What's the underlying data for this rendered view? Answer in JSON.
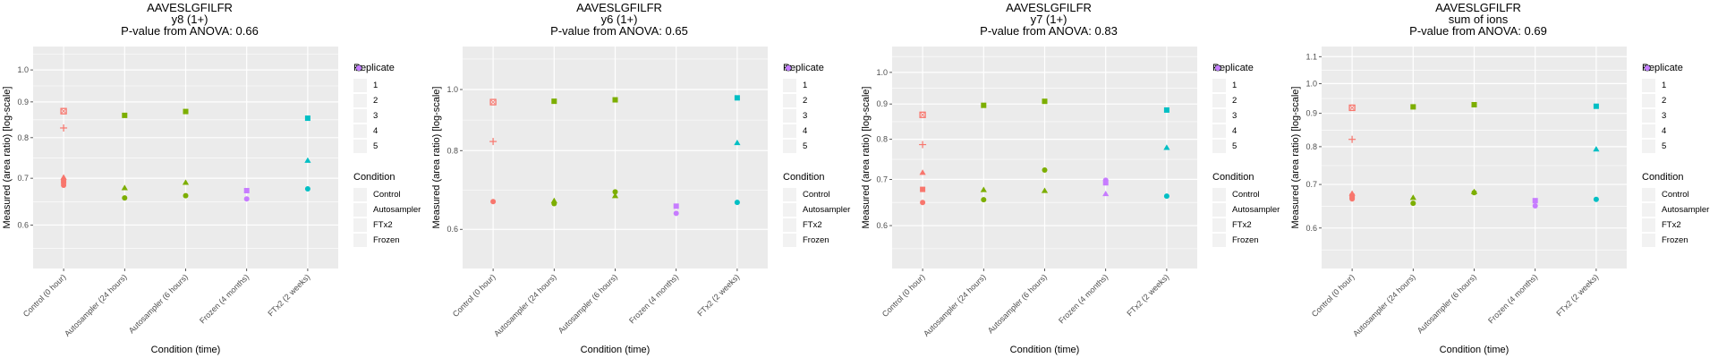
{
  "chart_data": [
    {
      "type": "scatter",
      "title": "AAVESLGFILFR",
      "subtitle": "y8 (1+)",
      "pvalue_label": "P-value from ANOVA: 0.66",
      "xlabel": "Condition (time)",
      "ylabel": "Measured (area ratio) [log-scale]",
      "yscale": "log",
      "ylim": [
        0.52,
        1.08
      ],
      "yticks": [
        0.6,
        0.7,
        0.8,
        0.9,
        1.0
      ],
      "ytick_labels": [
        "0.6",
        "0.7",
        "0.8",
        "0.9",
        "1.0"
      ],
      "categories": [
        "Control (0 hour)",
        "Autosampler (24 hours)",
        "Autosampler (6 hours)",
        "Frozen (4 months)",
        "FTx2 (2 weeks)"
      ],
      "points": [
        {
          "x": "Control (0 hour)",
          "y": 0.684,
          "replicate": 1,
          "condition": "Control"
        },
        {
          "x": "Control (0 hour)",
          "y": 0.702,
          "replicate": 2,
          "condition": "Control"
        },
        {
          "x": "Control (0 hour)",
          "y": 0.693,
          "replicate": 3,
          "condition": "Control"
        },
        {
          "x": "Control (0 hour)",
          "y": 0.826,
          "replicate": 4,
          "condition": "Control"
        },
        {
          "x": "Control (0 hour)",
          "y": 0.873,
          "replicate": 5,
          "condition": "Control"
        },
        {
          "x": "Autosampler (24 hours)",
          "y": 0.656,
          "replicate": 1,
          "condition": "Autosampler"
        },
        {
          "x": "Autosampler (24 hours)",
          "y": 0.678,
          "replicate": 2,
          "condition": "Autosampler"
        },
        {
          "x": "Autosampler (24 hours)",
          "y": 0.861,
          "replicate": 3,
          "condition": "Autosampler"
        },
        {
          "x": "Autosampler (6 hours)",
          "y": 0.661,
          "replicate": 1,
          "condition": "Autosampler"
        },
        {
          "x": "Autosampler (6 hours)",
          "y": 0.69,
          "replicate": 2,
          "condition": "Autosampler"
        },
        {
          "x": "Autosampler (6 hours)",
          "y": 0.872,
          "replicate": 3,
          "condition": "Autosampler"
        },
        {
          "x": "Frozen (4 months)",
          "y": 0.654,
          "replicate": 1,
          "condition": "Frozen"
        },
        {
          "x": "Frozen (4 months)",
          "y": 0.672,
          "replicate": 3,
          "condition": "Frozen"
        },
        {
          "x": "FTx2 (2 weeks)",
          "y": 0.676,
          "replicate": 1,
          "condition": "FTx2"
        },
        {
          "x": "FTx2 (2 weeks)",
          "y": 0.742,
          "replicate": 2,
          "condition": "FTx2"
        },
        {
          "x": "FTx2 (2 weeks)",
          "y": 0.853,
          "replicate": 3,
          "condition": "FTx2"
        }
      ]
    },
    {
      "type": "scatter",
      "title": "AAVESLGFILFR",
      "subtitle": "y6 (1+)",
      "pvalue_label": "P-value from ANOVA: 0.65",
      "xlabel": "Condition (time)",
      "ylabel": "Measured (area ratio) [log-scale]",
      "yscale": "log",
      "ylim": [
        0.52,
        1.17
      ],
      "yticks": [
        0.6,
        0.8,
        1.0
      ],
      "ytick_labels": [
        "0.6",
        "0.8",
        "1.0"
      ],
      "categories": [
        "Control (0 hour)",
        "Autosampler (24 hours)",
        "Autosampler (6 hours)",
        "Frozen (4 months)",
        "FTx2 (2 weeks)"
      ],
      "points": [
        {
          "x": "Control (0 hour)",
          "y": 0.664,
          "replicate": 1,
          "condition": "Control"
        },
        {
          "x": "Control (0 hour)",
          "y": 0.827,
          "replicate": 4,
          "condition": "Control"
        },
        {
          "x": "Control (0 hour)",
          "y": 0.955,
          "replicate": 5,
          "condition": "Control"
        },
        {
          "x": "Autosampler (24 hours)",
          "y": 0.659,
          "replicate": 1,
          "condition": "Autosampler"
        },
        {
          "x": "Autosampler (24 hours)",
          "y": 0.666,
          "replicate": 2,
          "condition": "Autosampler"
        },
        {
          "x": "Autosampler (24 hours)",
          "y": 0.958,
          "replicate": 3,
          "condition": "Autosampler"
        },
        {
          "x": "Autosampler (6 hours)",
          "y": 0.688,
          "replicate": 1,
          "condition": "Autosampler"
        },
        {
          "x": "Autosampler (6 hours)",
          "y": 0.678,
          "replicate": 2,
          "condition": "Autosampler"
        },
        {
          "x": "Autosampler (6 hours)",
          "y": 0.963,
          "replicate": 3,
          "condition": "Autosampler"
        },
        {
          "x": "Frozen (4 months)",
          "y": 0.636,
          "replicate": 1,
          "condition": "Frozen"
        },
        {
          "x": "Frozen (4 months)",
          "y": 0.653,
          "replicate": 3,
          "condition": "Frozen"
        },
        {
          "x": "FTx2 (2 weeks)",
          "y": 0.662,
          "replicate": 1,
          "condition": "FTx2"
        },
        {
          "x": "FTx2 (2 weeks)",
          "y": 0.823,
          "replicate": 2,
          "condition": "FTx2"
        },
        {
          "x": "FTx2 (2 weeks)",
          "y": 0.97,
          "replicate": 3,
          "condition": "FTx2"
        }
      ]
    },
    {
      "type": "scatter",
      "title": "AAVESLGFILFR",
      "subtitle": "y7 (1+)",
      "pvalue_label": "P-value from ANOVA: 0.83",
      "xlabel": "Condition (time)",
      "ylabel": "Measured (area ratio) [log-scale]",
      "yscale": "log",
      "ylim": [
        0.52,
        1.09
      ],
      "yticks": [
        0.6,
        0.7,
        0.8,
        0.9,
        1.0
      ],
      "ytick_labels": [
        "0.6",
        "0.7",
        "0.8",
        "0.9",
        "1.0"
      ],
      "categories": [
        "Control (0 hour)",
        "Autosampler (24 hours)",
        "Autosampler (6 hours)",
        "Frozen (4 months)",
        "FTx2 (2 weeks)"
      ],
      "points": [
        {
          "x": "Control (0 hour)",
          "y": 0.648,
          "replicate": 1,
          "condition": "Control"
        },
        {
          "x": "Control (0 hour)",
          "y": 0.716,
          "replicate": 2,
          "condition": "Control"
        },
        {
          "x": "Control (0 hour)",
          "y": 0.677,
          "replicate": 3,
          "condition": "Control"
        },
        {
          "x": "Control (0 hour)",
          "y": 0.786,
          "replicate": 4,
          "condition": "Control"
        },
        {
          "x": "Control (0 hour)",
          "y": 0.868,
          "replicate": 5,
          "condition": "Control"
        },
        {
          "x": "Autosampler (24 hours)",
          "y": 0.654,
          "replicate": 1,
          "condition": "Autosampler"
        },
        {
          "x": "Autosampler (24 hours)",
          "y": 0.676,
          "replicate": 2,
          "condition": "Autosampler"
        },
        {
          "x": "Autosampler (24 hours)",
          "y": 0.896,
          "replicate": 3,
          "condition": "Autosampler"
        },
        {
          "x": "Autosampler (6 hours)",
          "y": 0.722,
          "replicate": 1,
          "condition": "Autosampler"
        },
        {
          "x": "Autosampler (6 hours)",
          "y": 0.674,
          "replicate": 2,
          "condition": "Autosampler"
        },
        {
          "x": "Autosampler (6 hours)",
          "y": 0.908,
          "replicate": 3,
          "condition": "Autosampler"
        },
        {
          "x": "Frozen (4 months)",
          "y": 0.698,
          "replicate": 1,
          "condition": "Frozen"
        },
        {
          "x": "Frozen (4 months)",
          "y": 0.667,
          "replicate": 2,
          "condition": "Frozen"
        },
        {
          "x": "Frozen (4 months)",
          "y": 0.692,
          "replicate": 3,
          "condition": "Frozen"
        },
        {
          "x": "FTx2 (2 weeks)",
          "y": 0.662,
          "replicate": 1,
          "condition": "FTx2"
        },
        {
          "x": "FTx2 (2 weeks)",
          "y": 0.778,
          "replicate": 2,
          "condition": "FTx2"
        },
        {
          "x": "FTx2 (2 weeks)",
          "y": 0.882,
          "replicate": 3,
          "condition": "FTx2"
        }
      ]
    },
    {
      "type": "scatter",
      "title": "AAVESLGFILFR",
      "subtitle": "sum of ions",
      "pvalue_label": "P-value from ANOVA: 0.69",
      "xlabel": "Condition (time)",
      "ylabel": "Measured (area ratio) [log-scale]",
      "yscale": "log",
      "ylim": [
        0.52,
        1.14
      ],
      "yticks": [
        0.6,
        0.7,
        0.8,
        0.9,
        1.0,
        1.1
      ],
      "ytick_labels": [
        "0.6",
        "0.7",
        "0.8",
        "0.9",
        "1.0",
        "1.1"
      ],
      "categories": [
        "Control (0 hour)",
        "Autosampler (24 hours)",
        "Autosampler (6 hours)",
        "Frozen (4 months)",
        "FTx2 (2 weeks)"
      ],
      "points": [
        {
          "x": "Control (0 hour)",
          "y": 0.665,
          "replicate": 1,
          "condition": "Control"
        },
        {
          "x": "Control (0 hour)",
          "y": 0.678,
          "replicate": 2,
          "condition": "Control"
        },
        {
          "x": "Control (0 hour)",
          "y": 0.671,
          "replicate": 3,
          "condition": "Control"
        },
        {
          "x": "Control (0 hour)",
          "y": 0.821,
          "replicate": 4,
          "condition": "Control"
        },
        {
          "x": "Control (0 hour)",
          "y": 0.918,
          "replicate": 5,
          "condition": "Control"
        },
        {
          "x": "Autosampler (24 hours)",
          "y": 0.655,
          "replicate": 1,
          "condition": "Autosampler"
        },
        {
          "x": "Autosampler (24 hours)",
          "y": 0.668,
          "replicate": 2,
          "condition": "Autosampler"
        },
        {
          "x": "Autosampler (24 hours)",
          "y": 0.921,
          "replicate": 3,
          "condition": "Autosampler"
        },
        {
          "x": "Autosampler (6 hours)",
          "y": 0.68,
          "replicate": 1,
          "condition": "Autosampler"
        },
        {
          "x": "Autosampler (6 hours)",
          "y": 0.682,
          "replicate": 2,
          "condition": "Autosampler"
        },
        {
          "x": "Autosampler (6 hours)",
          "y": 0.928,
          "replicate": 3,
          "condition": "Autosampler"
        },
        {
          "x": "Frozen (4 months)",
          "y": 0.649,
          "replicate": 1,
          "condition": "Frozen"
        },
        {
          "x": "Frozen (4 months)",
          "y": 0.661,
          "replicate": 3,
          "condition": "Frozen"
        },
        {
          "x": "FTx2 (2 weeks)",
          "y": 0.664,
          "replicate": 1,
          "condition": "FTx2"
        },
        {
          "x": "FTx2 (2 weeks)",
          "y": 0.793,
          "replicate": 2,
          "condition": "FTx2"
        },
        {
          "x": "FTx2 (2 weeks)",
          "y": 0.923,
          "replicate": 3,
          "condition": "FTx2"
        }
      ]
    }
  ],
  "legend": {
    "replicate_title": "Replicate",
    "replicates": [
      {
        "value": 1,
        "label": "1",
        "shape": "circle"
      },
      {
        "value": 2,
        "label": "2",
        "shape": "triangle"
      },
      {
        "value": 3,
        "label": "3",
        "shape": "square"
      },
      {
        "value": 4,
        "label": "4",
        "shape": "plus"
      },
      {
        "value": 5,
        "label": "5",
        "shape": "boxed-x"
      }
    ],
    "condition_title": "Condition",
    "conditions": [
      {
        "name": "Control",
        "label": "Control",
        "color": "#F8766D"
      },
      {
        "name": "Autosampler",
        "label": "Autosampler",
        "color": "#7CAE00"
      },
      {
        "name": "FTx2",
        "label": "FTx2",
        "color": "#00BFC4"
      },
      {
        "name": "Frozen",
        "label": "Frozen",
        "color": "#C77CFF"
      }
    ]
  },
  "colors": {
    "panel_background": "#EBEBEB",
    "gridline": "#FFFFFF",
    "tick_text": "#4D4D4D"
  }
}
